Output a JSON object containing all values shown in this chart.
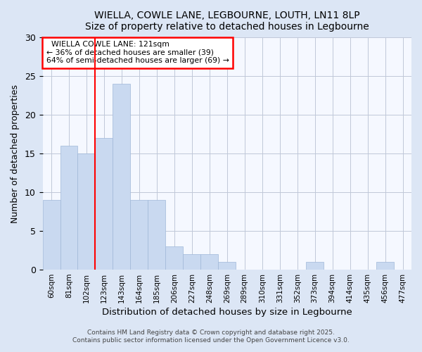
{
  "title": "WIELLA, COWLE LANE, LEGBOURNE, LOUTH, LN11 8LP",
  "subtitle": "Size of property relative to detached houses in Legbourne",
  "xlabel": "Distribution of detached houses by size in Legbourne",
  "ylabel": "Number of detached properties",
  "categories": [
    "60sqm",
    "81sqm",
    "102sqm",
    "123sqm",
    "143sqm",
    "164sqm",
    "185sqm",
    "206sqm",
    "227sqm",
    "248sqm",
    "269sqm",
    "289sqm",
    "310sqm",
    "331sqm",
    "352sqm",
    "373sqm",
    "394sqm",
    "414sqm",
    "435sqm",
    "456sqm",
    "477sqm"
  ],
  "values": [
    9,
    16,
    15,
    17,
    24,
    9,
    9,
    3,
    2,
    2,
    1,
    0,
    0,
    0,
    0,
    1,
    0,
    0,
    0,
    1,
    0
  ],
  "bar_color": "#c9d9f0",
  "bar_edge_color": "#a0b8d8",
  "vline_x": 3,
  "vline_color": "red",
  "annotation_title": "WIELLA COWLE LANE: 121sqm",
  "annotation_line1": "← 36% of detached houses are smaller (39)",
  "annotation_line2": "64% of semi-detached houses are larger (69) →",
  "annotation_box_color": "white",
  "annotation_box_edge": "red",
  "ylim": [
    0,
    30
  ],
  "yticks": [
    0,
    5,
    10,
    15,
    20,
    25,
    30
  ],
  "footer1": "Contains HM Land Registry data © Crown copyright and database right 2025.",
  "footer2": "Contains public sector information licensed under the Open Government Licence v3.0.",
  "bg_color": "#dce6f5",
  "plot_bg_color": "#f5f8ff"
}
